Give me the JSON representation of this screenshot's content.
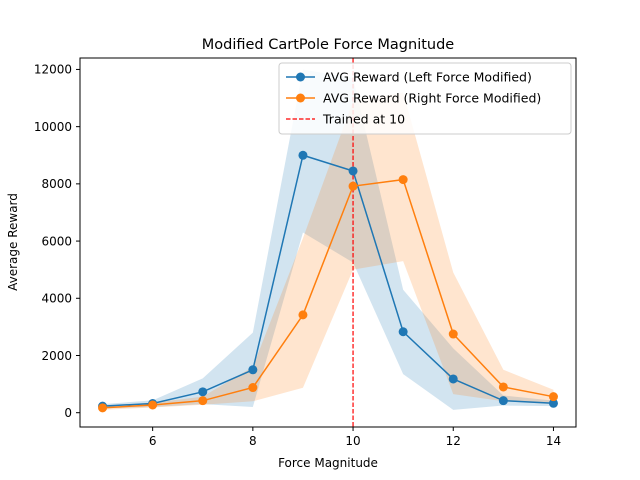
{
  "chart_data": {
    "type": "line",
    "title": "Modified CartPole Force Magnitude",
    "xlabel": "Force Magnitude",
    "ylabel": "Average Reward",
    "x": [
      5,
      6,
      7,
      8,
      9,
      10,
      11,
      12,
      13,
      14
    ],
    "xlim": [
      4.55,
      14.45
    ],
    "ylim": [
      -500,
      12400
    ],
    "xticks": [
      6,
      8,
      10,
      12,
      14
    ],
    "yticks": [
      0,
      2000,
      4000,
      6000,
      8000,
      10000,
      12000
    ],
    "grid": false,
    "legend_position": "top-right",
    "series": [
      {
        "name": "AVG Reward (Left Force Modified)",
        "color": "#1f77b4",
        "values": [
          230,
          320,
          730,
          1500,
          9000,
          8450,
          2830,
          1180,
          420,
          330
        ],
        "band_lower": [
          150,
          200,
          300,
          200,
          6300,
          5250,
          1350,
          100,
          250,
          230
        ],
        "band_upper": [
          300,
          430,
          1200,
          2800,
          12000,
          11700,
          4300,
          2250,
          600,
          420
        ]
      },
      {
        "name": "AVG Reward (Right Force Modified)",
        "color": "#ff7f0e",
        "values": [
          170,
          270,
          420,
          880,
          3420,
          7920,
          8150,
          2750,
          900,
          560
        ],
        "band_lower": [
          100,
          180,
          280,
          400,
          870,
          5000,
          5300,
          650,
          400,
          300
        ],
        "band_upper": [
          240,
          350,
          560,
          1600,
          6100,
          10900,
          11200,
          4900,
          1500,
          800
        ]
      }
    ],
    "reference_line": {
      "label": "Trained at 10",
      "x": 10,
      "color": "#ff0000",
      "style": "dashed"
    }
  }
}
